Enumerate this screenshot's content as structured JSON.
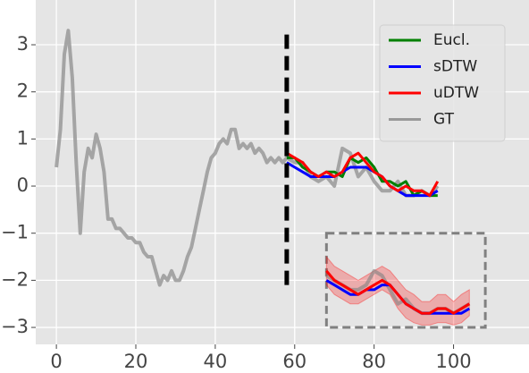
{
  "chart_data": {
    "type": "line",
    "xlim": [
      -5.2,
      119
    ],
    "ylim": [
      -3.36,
      3.95
    ],
    "xticks": [
      0,
      20,
      40,
      60,
      80,
      100
    ],
    "yticks": [
      {
        "value": -3,
        "label": "−3"
      },
      {
        "value": -2,
        "label": "−2"
      },
      {
        "value": -1,
        "label": "−1"
      },
      0,
      1,
      2,
      3
    ],
    "grid": true,
    "legend": "upper right",
    "series": [
      {
        "name": "Eucl.",
        "color": "#008000",
        "x": [
          58,
          60,
          62,
          64,
          66,
          68,
          70,
          72,
          74,
          76,
          78,
          80,
          82,
          84,
          86,
          88,
          90,
          92,
          94,
          96
        ],
        "values": [
          0.6,
          0.6,
          0.4,
          0.3,
          0.2,
          0.3,
          0.3,
          0.2,
          0.6,
          0.5,
          0.6,
          0.4,
          0.1,
          0.1,
          0.0,
          0.1,
          -0.2,
          -0.1,
          -0.2,
          -0.2
        ]
      },
      {
        "name": "sDTW",
        "color": "#0000ff",
        "x": [
          58,
          60,
          62,
          64,
          66,
          68,
          70,
          72,
          74,
          76,
          78,
          80,
          82,
          84,
          86,
          88,
          90,
          92,
          94,
          96
        ],
        "values": [
          0.5,
          0.4,
          0.3,
          0.2,
          0.2,
          0.2,
          0.2,
          0.3,
          0.4,
          0.4,
          0.4,
          0.3,
          0.2,
          0.0,
          -0.1,
          -0.2,
          -0.2,
          -0.2,
          -0.2,
          -0.1
        ]
      },
      {
        "name": "uDTW",
        "color": "#ff0000",
        "x": [
          58,
          60,
          62,
          64,
          66,
          68,
          70,
          72,
          74,
          76,
          78,
          80,
          82,
          84,
          86,
          88,
          90,
          92,
          94,
          96
        ],
        "values": [
          0.7,
          0.6,
          0.5,
          0.3,
          0.2,
          0.3,
          0.2,
          0.3,
          0.6,
          0.7,
          0.5,
          0.3,
          0.2,
          0.0,
          -0.1,
          0.0,
          -0.1,
          -0.1,
          -0.2,
          0.1
        ]
      },
      {
        "name": "GT",
        "color": "#999999",
        "x": [
          0,
          1,
          2,
          3,
          4,
          5,
          6,
          7,
          8,
          9,
          10,
          11,
          12,
          13,
          14,
          15,
          16,
          17,
          18,
          19,
          20,
          21,
          22,
          23,
          24,
          25,
          26,
          27,
          28,
          29,
          30,
          31,
          32,
          33,
          34,
          35,
          36,
          37,
          38,
          39,
          40,
          41,
          42,
          43,
          44,
          45,
          46,
          47,
          48,
          49,
          50,
          51,
          52,
          53,
          54,
          55,
          56,
          57,
          58,
          60,
          62,
          64,
          66,
          68,
          70,
          72,
          74,
          76,
          78,
          80,
          82,
          84,
          86,
          88,
          90,
          92,
          94,
          96
        ],
        "values": [
          0.4,
          1.2,
          2.8,
          3.3,
          2.3,
          0.5,
          -1.0,
          0.3,
          0.8,
          0.6,
          1.1,
          0.8,
          0.3,
          -0.7,
          -0.7,
          -0.9,
          -0.9,
          -1.0,
          -1.1,
          -1.1,
          -1.2,
          -1.2,
          -1.4,
          -1.5,
          -1.5,
          -1.8,
          -2.1,
          -1.9,
          -2.0,
          -1.8,
          -2.0,
          -2.0,
          -1.8,
          -1.5,
          -1.3,
          -0.9,
          -0.5,
          -0.1,
          0.3,
          0.6,
          0.7,
          0.9,
          1.0,
          0.9,
          1.2,
          1.2,
          0.8,
          0.9,
          0.8,
          0.9,
          0.7,
          0.8,
          0.7,
          0.5,
          0.6,
          0.5,
          0.6,
          0.5,
          0.6,
          0.5,
          0.5,
          0.2,
          0.1,
          0.2,
          0.0,
          0.8,
          0.7,
          0.2,
          0.4,
          0.1,
          -0.1,
          -0.1,
          0.1,
          -0.2,
          -0.2,
          -0.1,
          -0.2,
          0.0
        ]
      }
    ],
    "vline": {
      "x": 58,
      "y": [
        -2.1,
        3.3
      ],
      "color": "#000000"
    },
    "inset": {
      "xlim": [
        68,
        108
      ],
      "ylim": [
        -3.0,
        -1.0
      ],
      "color": "#808080",
      "band": {
        "color": "#ff0000",
        "x": [
          68,
          70,
          72,
          74,
          76,
          78,
          80,
          82,
          84,
          86,
          88,
          90,
          92,
          94,
          96,
          98,
          100,
          102,
          104
        ],
        "lower": [
          -2.1,
          -2.3,
          -2.4,
          -2.5,
          -2.5,
          -2.4,
          -2.3,
          -2.2,
          -2.3,
          -2.6,
          -2.8,
          -2.9,
          -2.95,
          -2.95,
          -2.9,
          -2.9,
          -2.95,
          -2.9,
          -2.75
        ],
        "upper": [
          -1.5,
          -1.7,
          -1.8,
          -1.9,
          -2.0,
          -1.9,
          -1.8,
          -1.7,
          -1.8,
          -2.0,
          -2.2,
          -2.3,
          -2.45,
          -2.45,
          -2.3,
          -2.3,
          -2.45,
          -2.3,
          -2.2
        ]
      },
      "series": [
        {
          "color": "#808080",
          "x": [
            68,
            70,
            72,
            74,
            76,
            78,
            80,
            82,
            84,
            86,
            88,
            90,
            92,
            94,
            96,
            98,
            100,
            102,
            104
          ],
          "values": [
            -1.9,
            -2.0,
            -2.1,
            -2.2,
            -2.2,
            -2.1,
            -1.8,
            -1.9,
            -2.2,
            -2.5,
            -2.4,
            -2.6,
            -2.7,
            -2.7,
            -2.6,
            -2.6,
            -2.7,
            -2.6,
            -2.5
          ]
        },
        {
          "color": "#0000ff",
          "x": [
            68,
            70,
            72,
            74,
            76,
            78,
            80,
            82,
            84,
            86,
            88,
            90,
            92,
            94,
            96,
            98,
            100,
            102,
            104
          ],
          "values": [
            -2.0,
            -2.1,
            -2.2,
            -2.3,
            -2.3,
            -2.2,
            -2.2,
            -2.1,
            -2.1,
            -2.3,
            -2.5,
            -2.6,
            -2.7,
            -2.7,
            -2.7,
            -2.7,
            -2.7,
            -2.7,
            -2.6
          ]
        },
        {
          "color": "#ff0000",
          "x": [
            68,
            70,
            72,
            74,
            76,
            78,
            80,
            82,
            84,
            86,
            88,
            90,
            92,
            94,
            96,
            98,
            100,
            102,
            104
          ],
          "values": [
            -1.8,
            -2.0,
            -2.1,
            -2.2,
            -2.3,
            -2.2,
            -2.1,
            -2.0,
            -2.1,
            -2.3,
            -2.5,
            -2.6,
            -2.7,
            -2.7,
            -2.6,
            -2.6,
            -2.7,
            -2.6,
            -2.5
          ]
        }
      ]
    }
  }
}
